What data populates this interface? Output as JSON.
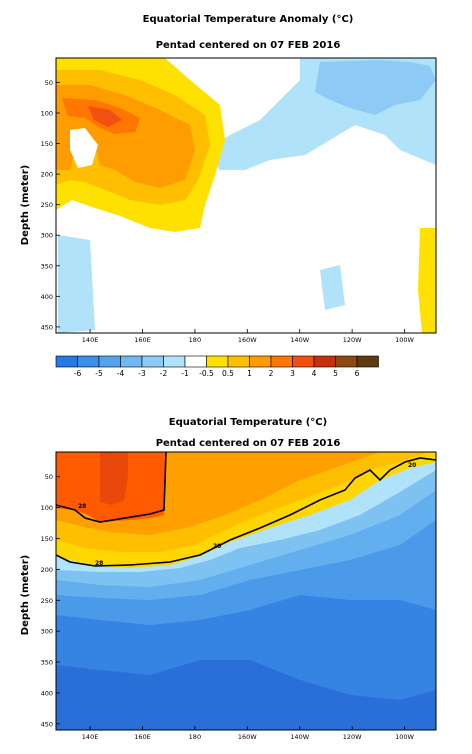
{
  "chart_data": [
    {
      "type": "heatmap",
      "title": "Equatorial Temperature Anomaly (°C)",
      "subtitle": "Pentad centered on 07 FEB 2016",
      "ylabel": "Depth (meter)",
      "xlabel": "",
      "x_ticks": [
        "140E",
        "160E",
        "180",
        "160W",
        "140W",
        "120W",
        "100W"
      ],
      "x_tick_values": [
        140,
        160,
        180,
        200,
        220,
        240,
        260
      ],
      "xlim": [
        127,
        272
      ],
      "y_ticks": [
        "50",
        "100",
        "150",
        "200",
        "250",
        "300",
        "350",
        "400",
        "450"
      ],
      "y_tick_values": [
        50,
        100,
        150,
        200,
        250,
        300,
        350,
        400,
        450
      ],
      "ylim": [
        460,
        10
      ],
      "colorbar": {
        "labels": [
          "-6",
          "-5",
          "-4",
          "-3",
          "-2",
          "-1",
          "-0.5",
          "0.5",
          "1",
          "2",
          "3",
          "4",
          "5",
          "6"
        ],
        "colors": [
          "#2a78e4",
          "#3c8ee8",
          "#55a3ee",
          "#70b8f2",
          "#8dcbf6",
          "#b0e2fa",
          "#ffffff",
          "#ffe100",
          "#ffbf00",
          "#ff9c00",
          "#ff7600",
          "#f24f10",
          "#c8300c",
          "#8a4a10",
          "#5e3a10"
        ]
      },
      "contour_levels": [
        0.5,
        1,
        2,
        3,
        4
      ],
      "features": [
        {
          "name": "western warm anomaly",
          "x": [
            128,
            175
          ],
          "depth": [
            20,
            260
          ],
          "max": 4
        },
        {
          "name": "central cool anomaly",
          "x": [
            210,
            262
          ],
          "depth": [
            20,
            160
          ],
          "min": -1
        },
        {
          "name": "eastern warm anomaly",
          "x": [
            263,
            271
          ],
          "depth": [
            260,
            460
          ],
          "max": 1
        }
      ]
    },
    {
      "type": "heatmap",
      "title": "Equatorial Temperature (°C)",
      "subtitle": "Pentad centered on 07 FEB 2016",
      "ylabel": "Depth (meter)",
      "xlabel": "",
      "x_ticks": [
        "140E",
        "160E",
        "180",
        "160W",
        "140W",
        "120W",
        "100W"
      ],
      "x_tick_values": [
        140,
        160,
        180,
        200,
        220,
        240,
        260
      ],
      "xlim": [
        127,
        272
      ],
      "y_ticks": [
        "50",
        "100",
        "150",
        "200",
        "250",
        "300",
        "350",
        "400",
        "450"
      ],
      "y_tick_values": [
        50,
        100,
        150,
        200,
        250,
        300,
        350,
        400,
        450
      ],
      "ylim": [
        460,
        10
      ],
      "contour_labels": [
        "28",
        "20",
        "28",
        "20"
      ],
      "isotherms": [
        {
          "level": 20,
          "x": [
            128,
            140,
            160,
            180,
            200,
            220,
            240,
            250,
            260,
            270
          ],
          "depth": [
            175,
            185,
            188,
            184,
            162,
            135,
            112,
            82,
            50,
            18
          ]
        },
        {
          "level": 28,
          "x": [
            128,
            140,
            150,
            170,
            176
          ],
          "depth": [
            98,
            105,
            118,
            110,
            15
          ]
        }
      ],
      "colors": {
        "warmest": "#ff5a00",
        "warm": "#ff9f00",
        "mid": "#ffd600",
        "cool": "#3b8ee8",
        "coldest": "#2a6fd8"
      }
    }
  ]
}
